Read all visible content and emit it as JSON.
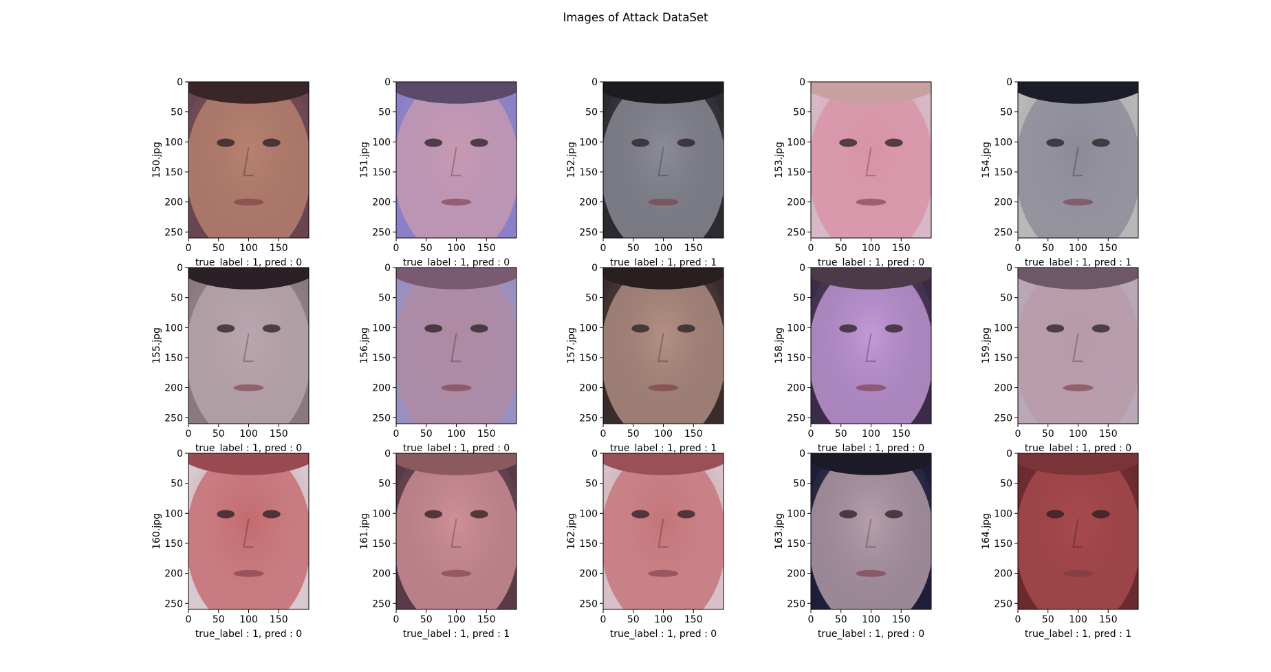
{
  "figure": {
    "title": "Images of Attack DataSet"
  },
  "chart_data": {
    "type": "image-grid",
    "title": "Images of Attack DataSet",
    "rows": 3,
    "cols": 5,
    "x_ticks": [
      "0",
      "50",
      "100",
      "150"
    ],
    "y_ticks": [
      "0",
      "50",
      "100",
      "150",
      "200",
      "250"
    ],
    "xlim": [
      0,
      200
    ],
    "ylim": [
      260,
      0
    ],
    "panels": [
      {
        "ylabel": "150.jpg",
        "xlabel": "true_label : 1, pred : 0",
        "true_label": 1,
        "pred": 0,
        "bg": "#6a4550",
        "skin": "#b8826f",
        "hair": "#3a2626"
      },
      {
        "ylabel": "151.jpg",
        "xlabel": "true_label : 1, pred : 0",
        "true_label": 1,
        "pred": 0,
        "bg": "#8a7fc8",
        "skin": "#c79ab0",
        "hair": "#5b4a6a"
      },
      {
        "ylabel": "152.jpg",
        "xlabel": "true_label : 1, pred : 1",
        "true_label": 1,
        "pred": 1,
        "bg": "#2a2a30",
        "skin": "#8c8c98",
        "hair": "#1b1b20"
      },
      {
        "ylabel": "153.jpg",
        "xlabel": "true_label : 1, pred : 0",
        "true_label": 1,
        "pred": 0,
        "bg": "#d7b8c8",
        "skin": "#d892a6",
        "hair": "#c8a0a0"
      },
      {
        "ylabel": "154.jpg",
        "xlabel": "true_label : 1, pred : 1",
        "true_label": 1,
        "pred": 1,
        "bg": "#b8b8b8",
        "skin": "#8b8a98",
        "hair": "#1b1d28"
      },
      {
        "ylabel": "155.jpg",
        "xlabel": "true_label : 1, pred : 0",
        "true_label": 1,
        "pred": 0,
        "bg": "#8a7a80",
        "skin": "#b9a6ae",
        "hair": "#2b2025"
      },
      {
        "ylabel": "156.jpg",
        "xlabel": "true_label : 1, pred : 0",
        "true_label": 1,
        "pred": 0,
        "bg": "#9a90c0",
        "skin": "#b08aa2",
        "hair": "#7a5a70"
      },
      {
        "ylabel": "157.jpg",
        "xlabel": "true_label : 1, pred : 1",
        "true_label": 1,
        "pred": 1,
        "bg": "#3a2c2c",
        "skin": "#b39084",
        "hair": "#2a1f1f"
      },
      {
        "ylabel": "158.jpg",
        "xlabel": "true_label : 1, pred : 0",
        "true_label": 1,
        "pred": 0,
        "bg": "#3a2c48",
        "skin": "#c49ad8",
        "hair": "#4b3a48"
      },
      {
        "ylabel": "159.jpg",
        "xlabel": "true_label : 1, pred : 0",
        "true_label": 1,
        "pred": 0,
        "bg": "#b8a8b8",
        "skin": "#b89aa8",
        "hair": "#6e5868"
      },
      {
        "ylabel": "160.jpg",
        "xlabel": "true_label : 1, pred : 0",
        "true_label": 1,
        "pred": 0,
        "bg": "#d8c8d0",
        "skin": "#c46a6e",
        "hair": "#9a4a50"
      },
      {
        "ylabel": "161.jpg",
        "xlabel": "true_label : 1, pred : 1",
        "true_label": 1,
        "pred": 1,
        "bg": "#5a3a48",
        "skin": "#d09098",
        "hair": "#8a5a60"
      },
      {
        "ylabel": "162.jpg",
        "xlabel": "true_label : 1, pred : 0",
        "true_label": 1,
        "pred": 0,
        "bg": "#d8c0c8",
        "skin": "#c47478",
        "hair": "#9a5058"
      },
      {
        "ylabel": "163.jpg",
        "xlabel": "true_label : 1, pred : 0",
        "true_label": 1,
        "pred": 0,
        "bg": "#1e1e3a",
        "skin": "#b8a0ac",
        "hair": "#1c1a28"
      },
      {
        "ylabel": "164.jpg",
        "xlabel": "true_label : 1, pred : 1",
        "true_label": 1,
        "pred": 1,
        "bg": "#6a2a30",
        "skin": "#a84a4e",
        "hair": "#7a3438"
      }
    ]
  }
}
